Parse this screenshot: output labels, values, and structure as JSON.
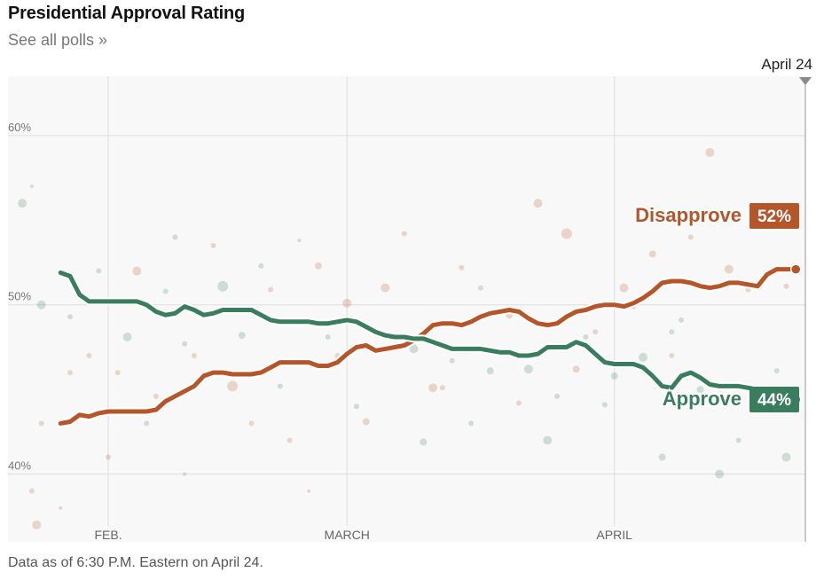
{
  "header": {
    "title": "Presidential Approval Rating",
    "polls_link": "See all polls »"
  },
  "footer": {
    "note": "Data as of 6:30 P.M. Eastern on April 24."
  },
  "colors": {
    "approve": "#3a7d5e",
    "disapprove": "#b5552a",
    "grid": "#dddddd",
    "plot_bg": "#f8f8f8"
  },
  "chart_data": {
    "type": "line",
    "current_date_label": "April 24",
    "x_domain": [
      -0.5,
      83.0
    ],
    "ylim": [
      36.0,
      63.5
    ],
    "y_ticks": [
      {
        "v": 40,
        "label": "40%"
      },
      {
        "v": 50,
        "label": "50%"
      },
      {
        "v": 60,
        "label": "60%"
      }
    ],
    "x_ticks": [
      {
        "v": 10,
        "label": "FEB."
      },
      {
        "v": 35,
        "label": "MARCH"
      },
      {
        "v": 63,
        "label": "APRIL"
      }
    ],
    "series": [
      {
        "name": "Disapprove",
        "key": "disapprove",
        "final_label": "52%",
        "x": [
          5,
          6,
          7,
          8,
          9,
          10,
          11,
          12,
          13,
          14,
          15,
          16,
          17,
          18,
          19,
          20,
          21,
          22,
          23,
          24,
          25,
          26,
          27,
          28,
          29,
          30,
          31,
          32,
          33,
          34,
          35,
          36,
          37,
          38,
          39,
          40,
          41,
          42,
          43,
          44,
          45,
          46,
          47,
          48,
          49,
          50,
          51,
          52,
          53,
          54,
          55,
          56,
          57,
          58,
          59,
          60,
          61,
          62,
          63,
          64,
          65,
          66,
          67,
          68,
          69,
          70,
          71,
          72,
          73,
          74,
          75,
          76,
          77,
          78,
          79,
          80,
          81,
          82
        ],
        "values": [
          43.0,
          43.1,
          43.5,
          43.4,
          43.6,
          43.7,
          43.7,
          43.7,
          43.7,
          43.7,
          43.8,
          44.3,
          44.6,
          44.9,
          45.2,
          45.8,
          46.0,
          46.0,
          45.9,
          45.9,
          45.9,
          46.0,
          46.3,
          46.6,
          46.6,
          46.6,
          46.6,
          46.4,
          46.4,
          46.6,
          47.1,
          47.5,
          47.6,
          47.3,
          47.4,
          47.5,
          47.6,
          47.9,
          48.3,
          48.8,
          48.9,
          48.9,
          48.8,
          49.0,
          49.3,
          49.5,
          49.6,
          49.7,
          49.6,
          49.2,
          48.9,
          48.8,
          48.9,
          49.3,
          49.6,
          49.7,
          49.9,
          50.0,
          50.0,
          49.9,
          50.1,
          50.4,
          50.8,
          51.3,
          51.4,
          51.4,
          51.3,
          51.1,
          51.0,
          51.1,
          51.3,
          51.3,
          51.2,
          51.1,
          51.8,
          52.1,
          52.1,
          52.1
        ]
      },
      {
        "name": "Approve",
        "key": "approve",
        "final_label": "44%",
        "x": [
          5,
          6,
          7,
          8,
          9,
          10,
          11,
          12,
          13,
          14,
          15,
          16,
          17,
          18,
          19,
          20,
          21,
          22,
          23,
          24,
          25,
          26,
          27,
          28,
          29,
          30,
          31,
          32,
          33,
          34,
          35,
          36,
          37,
          38,
          39,
          40,
          41,
          42,
          43,
          44,
          45,
          46,
          47,
          48,
          49,
          50,
          51,
          52,
          53,
          54,
          55,
          56,
          57,
          58,
          59,
          60,
          61,
          62,
          63,
          64,
          65,
          66,
          67,
          68,
          69,
          70,
          71,
          72,
          73,
          74,
          75,
          76,
          77,
          78,
          79,
          80,
          81,
          82
        ],
        "values": [
          51.9,
          51.7,
          50.6,
          50.2,
          50.2,
          50.2,
          50.2,
          50.2,
          50.2,
          50.0,
          49.6,
          49.4,
          49.5,
          49.9,
          49.7,
          49.4,
          49.5,
          49.7,
          49.7,
          49.7,
          49.7,
          49.4,
          49.1,
          49.0,
          49.0,
          49.0,
          49.0,
          48.9,
          48.9,
          49.0,
          49.1,
          49.0,
          48.7,
          48.4,
          48.2,
          48.1,
          48.1,
          48.0,
          48.0,
          47.8,
          47.6,
          47.4,
          47.4,
          47.4,
          47.4,
          47.3,
          47.2,
          47.2,
          47.0,
          47.0,
          47.1,
          47.5,
          47.5,
          47.5,
          47.8,
          47.6,
          47.1,
          46.6,
          46.5,
          46.5,
          46.5,
          46.3,
          45.8,
          45.2,
          45.1,
          45.8,
          46.0,
          45.7,
          45.3,
          45.2,
          45.2,
          45.2,
          45.1,
          45.0,
          44.8,
          44.5,
          44.4,
          44.4
        ]
      }
    ],
    "polls": [
      {
        "x": 9,
        "y": 52,
        "s": "a",
        "r": 3
      },
      {
        "x": 16,
        "y": 50.8,
        "s": "a",
        "r": 3
      },
      {
        "x": 22,
        "y": 51.1,
        "s": "a",
        "r": 6
      },
      {
        "x": 26,
        "y": 52.3,
        "s": "a",
        "r": 3
      },
      {
        "x": 30,
        "y": 53.8,
        "s": "a",
        "r": 2
      },
      {
        "x": 12,
        "y": 48.1,
        "s": "a",
        "r": 5
      },
      {
        "x": 18,
        "y": 47.7,
        "s": "a",
        "r": 3
      },
      {
        "x": 24,
        "y": 48.2,
        "s": "a",
        "r": 4
      },
      {
        "x": 33,
        "y": 48.1,
        "s": "a",
        "r": 3
      },
      {
        "x": 38,
        "y": 47.3,
        "s": "a",
        "r": 4
      },
      {
        "x": 42,
        "y": 47.4,
        "s": "a",
        "r": 5
      },
      {
        "x": 46,
        "y": 46.7,
        "s": "a",
        "r": 3
      },
      {
        "x": 50,
        "y": 46.1,
        "s": "a",
        "r": 4
      },
      {
        "x": 54,
        "y": 46.2,
        "s": "a",
        "r": 5
      },
      {
        "x": 57,
        "y": 44.6,
        "s": "a",
        "r": 3
      },
      {
        "x": 60,
        "y": 48.1,
        "s": "a",
        "r": 3
      },
      {
        "x": 63,
        "y": 45.8,
        "s": "a",
        "r": 4
      },
      {
        "x": 66,
        "y": 46.9,
        "s": "a",
        "r": 5
      },
      {
        "x": 69,
        "y": 48.4,
        "s": "a",
        "r": 3
      },
      {
        "x": 72,
        "y": 45.0,
        "s": "a",
        "r": 4
      },
      {
        "x": 74,
        "y": 40.0,
        "s": "a",
        "r": 5
      },
      {
        "x": 76,
        "y": 42.0,
        "s": "a",
        "r": 3
      },
      {
        "x": 78,
        "y": 44.1,
        "s": "a",
        "r": 5
      },
      {
        "x": 80,
        "y": 46.1,
        "s": "a",
        "r": 3
      },
      {
        "x": 81,
        "y": 41.0,
        "s": "a",
        "r": 5
      },
      {
        "x": 6,
        "y": 49.3,
        "s": "a",
        "r": 3
      },
      {
        "x": 14,
        "y": 43.0,
        "s": "a",
        "r": 3
      },
      {
        "x": 20,
        "y": 49.5,
        "s": "a",
        "r": 3
      },
      {
        "x": 28,
        "y": 45.2,
        "s": "a",
        "r": 3
      },
      {
        "x": 36,
        "y": 44.0,
        "s": "a",
        "r": 3
      },
      {
        "x": 43,
        "y": 41.9,
        "s": "a",
        "r": 4
      },
      {
        "x": 48,
        "y": 43.0,
        "s": "a",
        "r": 3
      },
      {
        "x": 56,
        "y": 42.0,
        "s": "a",
        "r": 5
      },
      {
        "x": 62,
        "y": 44.1,
        "s": "a",
        "r": 3
      },
      {
        "x": 68,
        "y": 41.0,
        "s": "a",
        "r": 4
      },
      {
        "x": 1,
        "y": 56,
        "s": "a",
        "r": 5
      },
      {
        "x": 2,
        "y": 57,
        "s": "a",
        "r": 2
      },
      {
        "x": 3,
        "y": 50,
        "s": "a",
        "r": 5
      },
      {
        "x": 17,
        "y": 54,
        "s": "a",
        "r": 3
      },
      {
        "x": 70,
        "y": 49.1,
        "s": "a",
        "r": 3
      },
      {
        "x": 6,
        "y": 46,
        "s": "d",
        "r": 3
      },
      {
        "x": 10,
        "y": 41,
        "s": "d",
        "r": 3
      },
      {
        "x": 13,
        "y": 52,
        "s": "d",
        "r": 5
      },
      {
        "x": 15,
        "y": 44.6,
        "s": "d",
        "r": 3
      },
      {
        "x": 19,
        "y": 47,
        "s": "d",
        "r": 3
      },
      {
        "x": 21,
        "y": 53.5,
        "s": "d",
        "r": 3
      },
      {
        "x": 23,
        "y": 45.2,
        "s": "d",
        "r": 6
      },
      {
        "x": 27,
        "y": 50.9,
        "s": "d",
        "r": 3
      },
      {
        "x": 29,
        "y": 42.0,
        "s": "d",
        "r": 3
      },
      {
        "x": 32,
        "y": 52.3,
        "s": "d",
        "r": 4
      },
      {
        "x": 35,
        "y": 50.1,
        "s": "d",
        "r": 5
      },
      {
        "x": 37,
        "y": 43.1,
        "s": "d",
        "r": 4
      },
      {
        "x": 39,
        "y": 51.0,
        "s": "d",
        "r": 5
      },
      {
        "x": 41,
        "y": 54.2,
        "s": "d",
        "r": 3
      },
      {
        "x": 44,
        "y": 45.1,
        "s": "d",
        "r": 5
      },
      {
        "x": 47,
        "y": 52.2,
        "s": "d",
        "r": 3
      },
      {
        "x": 49,
        "y": 51.0,
        "s": "d",
        "r": 3
      },
      {
        "x": 52,
        "y": 49.4,
        "s": "d",
        "r": 4
      },
      {
        "x": 55,
        "y": 56.0,
        "s": "d",
        "r": 5
      },
      {
        "x": 58,
        "y": 54.2,
        "s": "d",
        "r": 6
      },
      {
        "x": 61,
        "y": 48.4,
        "s": "d",
        "r": 3
      },
      {
        "x": 64,
        "y": 51.0,
        "s": "d",
        "r": 5
      },
      {
        "x": 67,
        "y": 53.0,
        "s": "d",
        "r": 4
      },
      {
        "x": 71,
        "y": 54.0,
        "s": "d",
        "r": 3
      },
      {
        "x": 73,
        "y": 59.0,
        "s": "d",
        "r": 5
      },
      {
        "x": 75,
        "y": 52.1,
        "s": "d",
        "r": 5
      },
      {
        "x": 77,
        "y": 50.9,
        "s": "d",
        "r": 3
      },
      {
        "x": 79,
        "y": 55.2,
        "s": "d",
        "r": 5
      },
      {
        "x": 81,
        "y": 51.1,
        "s": "d",
        "r": 3
      },
      {
        "x": 2,
        "y": 39,
        "s": "d",
        "r": 3
      },
      {
        "x": 2.5,
        "y": 37,
        "s": "d",
        "r": 5
      },
      {
        "x": 5,
        "y": 38,
        "s": "d",
        "r": 2
      },
      {
        "x": 3,
        "y": 43,
        "s": "d",
        "r": 3
      },
      {
        "x": 8,
        "y": 47,
        "s": "d",
        "r": 3
      },
      {
        "x": 11,
        "y": 46,
        "s": "d",
        "r": 3
      },
      {
        "x": 18,
        "y": 40,
        "s": "d",
        "r": 2
      },
      {
        "x": 25,
        "y": 43,
        "s": "d",
        "r": 3
      },
      {
        "x": 31,
        "y": 39,
        "s": "d",
        "r": 2
      },
      {
        "x": 34,
        "y": 47,
        "s": "d",
        "r": 3
      },
      {
        "x": 45,
        "y": 45.1,
        "s": "d",
        "r": 3
      },
      {
        "x": 53,
        "y": 44.2,
        "s": "d",
        "r": 3
      },
      {
        "x": 59,
        "y": 46.2,
        "s": "d",
        "r": 4
      },
      {
        "x": 65,
        "y": 49.9,
        "s": "d",
        "r": 3
      },
      {
        "x": 69,
        "y": 47.0,
        "s": "d",
        "r": 3
      }
    ]
  }
}
